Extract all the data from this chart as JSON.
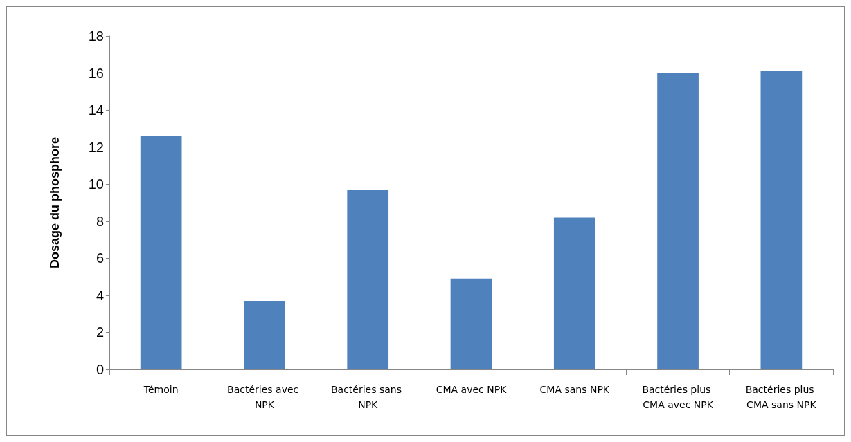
{
  "chart_data": {
    "type": "bar",
    "ylabel": "Dosage du phosphore",
    "categories": [
      "Témoin",
      "Bactéries avec NPK",
      "Bactéries sans NPK",
      "CMA avec NPK",
      "CMA sans NPK",
      "Bactéries plus CMA avec NPK",
      "Bactéries plus CMA sans NPK"
    ],
    "values": [
      12.6,
      3.7,
      9.7,
      4.9,
      8.2,
      16.0,
      16.1
    ],
    "color": "#4f81bd",
    "ylim": [
      0,
      18
    ],
    "yticks": [
      0,
      2,
      4,
      6,
      8,
      10,
      12,
      14,
      16,
      18
    ],
    "grid": false
  }
}
